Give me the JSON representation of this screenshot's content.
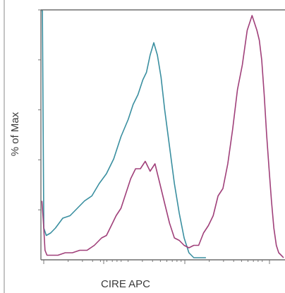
{
  "chart_data": {
    "type": "line",
    "title": "",
    "xlabel": "CIRE APC",
    "ylabel": "% of Max",
    "xlim": [
      0,
      100
    ],
    "ylim": [
      0,
      100
    ],
    "grid": false,
    "legend": "none",
    "series": [
      {
        "color": "#3a8fa0",
        "x": [
          0.2,
          0.6,
          1.2,
          2.2,
          4,
          6,
          9,
          12,
          15,
          18,
          21,
          24,
          27,
          30,
          33,
          36,
          38,
          40,
          42,
          43.5,
          45,
          46.5,
          48,
          49.5,
          51,
          53,
          55,
          57,
          59,
          61,
          63,
          65,
          68
        ],
        "y": [
          100,
          100,
          12,
          9,
          10,
          12,
          16,
          17,
          20,
          23,
          25,
          30,
          34,
          40,
          49,
          56,
          62,
          66,
          72,
          75,
          82,
          87,
          82,
          73,
          60,
          45,
          30,
          18,
          8,
          2,
          0,
          0,
          0
        ]
      },
      {
        "color": "#a0407a",
        "x": [
          0.4,
          1,
          1.7,
          2.5,
          4,
          7,
          10,
          13,
          16,
          19,
          22,
          25,
          27,
          29,
          31,
          33,
          35,
          37,
          39,
          41,
          43,
          45,
          47,
          49,
          51,
          53,
          55,
          57,
          59,
          61,
          63,
          65,
          67,
          69,
          71,
          73,
          75,
          77,
          79,
          81,
          83,
          85,
          87,
          89,
          90,
          91,
          92,
          93,
          94,
          95,
          96,
          97,
          98,
          99,
          100
        ],
        "y": [
          23,
          15,
          3,
          1,
          1,
          1,
          2,
          2,
          3,
          3,
          5,
          8,
          9,
          13,
          17,
          20,
          26,
          32,
          36,
          36,
          39,
          35,
          38,
          30,
          22,
          14,
          8,
          7,
          5,
          4,
          5,
          5,
          10,
          13,
          17,
          25,
          28,
          38,
          52,
          68,
          78,
          92,
          98,
          92,
          88,
          80,
          66,
          50,
          36,
          23,
          12,
          5,
          2,
          1,
          0
        ]
      }
    ]
  }
}
